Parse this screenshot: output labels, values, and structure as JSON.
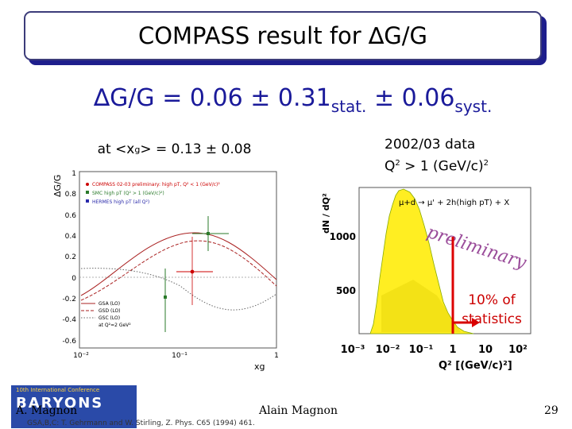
{
  "title": "COMPASS result for ∆G/G",
  "formula": {
    "lhs": "∆G/G =  0.06 ± 0.31",
    "stat_sub": "stat.",
    "mid": " ± 0.06",
    "syst_sub": "syst."
  },
  "note_xg": {
    "pre": "at <x",
    "sub": "g",
    "post": "> = 0.13 ± 0.08"
  },
  "note_data": {
    "line1": "2002/03 data",
    "q": "Q",
    "q_exp": "2",
    "gt": " > 1 (GeV/c)",
    "unit_exp": "2"
  },
  "note_stats": {
    "line1": "10% of",
    "line2": "statistics"
  },
  "left_plot": {
    "ylabel": "ΔG/G",
    "xlabel": "xg",
    "yticks": [
      "1",
      "0.8",
      "0.6",
      "0.4",
      "0.2",
      "0",
      "-0.2",
      "-0.4",
      "-0.6"
    ],
    "xticks": [
      "10⁻²",
      "10⁻¹",
      "1"
    ],
    "legend": [
      {
        "text": "COMPASS 02-03 preliminary: high pT, Q² < 1 (GeV/c)²",
        "color": "#cc0000"
      },
      {
        "text": "SMC high pT (Q² > 1 (GeV/c)²)",
        "color": "#2a7a2a"
      },
      {
        "text": "HERMES high pT (all Q²)",
        "color": "#2a2aaa"
      }
    ],
    "curve_legend": [
      "GSA (LO)",
      "GSD (LO)",
      "GSC (LO)",
      "at Q²=2 GeV²"
    ]
  },
  "right_plot": {
    "ylabel": "dN / dQ²",
    "xlabel": "Q² [(GeV/c)²]",
    "yticks": [
      "1000",
      "500"
    ],
    "xticks": [
      "10⁻³",
      "10⁻²",
      "10⁻¹",
      "1",
      "10",
      "10²"
    ],
    "process": "μ+d → μ' + 2h(high pT) + X",
    "watermark": "preliminary",
    "colors": {
      "fill": "#ffee22",
      "cut": "#dd0000"
    }
  },
  "footer": {
    "left": "A. Magnon",
    "center": "Alain Magnon",
    "page": "29"
  },
  "citation": "GSA,B,C: T. Gehrmann and W. Stirling, Z. Phys. C65 (1994) 461.",
  "logo": {
    "line1": "10th International Conference",
    "line2": "BARYONS"
  }
}
